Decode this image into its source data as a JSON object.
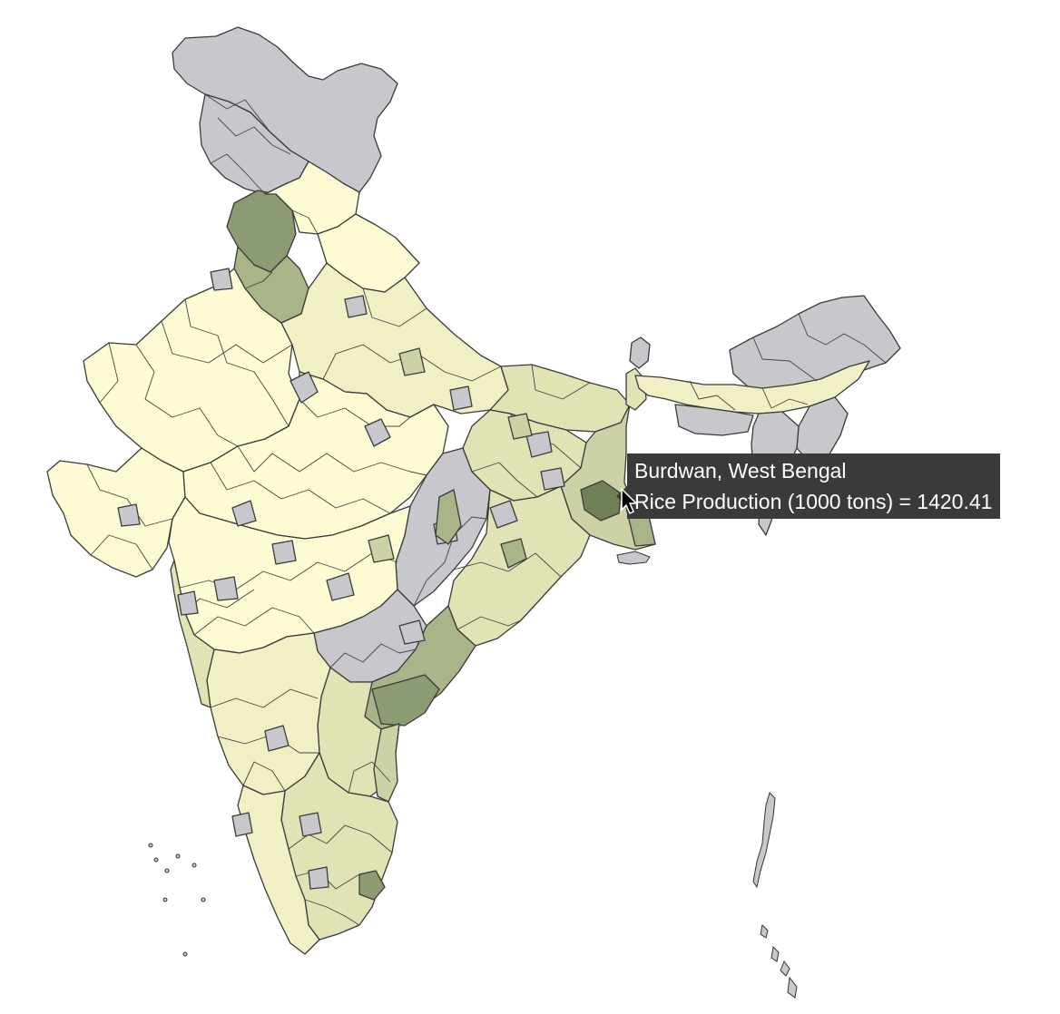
{
  "map": {
    "region": "India",
    "layer": "districts",
    "palette": {
      "no_data": "#c8c8cc",
      "level_1": "#fdfbd3",
      "level_2": "#f1f0c4",
      "level_3": "#e1e3b4",
      "level_4": "#ccd1a6",
      "level_5": "#a9b489",
      "level_6": "#8d9b74",
      "level_7": "#6f8059",
      "border": "#3a3a3a"
    }
  },
  "tooltip": {
    "district": "Burdwan, West Bengal",
    "metric_line": "Rice Production (1000 tons) = 1420.41",
    "metric_label": "Rice Production (1000 tons)",
    "value": 1420.41
  },
  "cursor": {
    "icon": "arrow-pointer-icon"
  }
}
